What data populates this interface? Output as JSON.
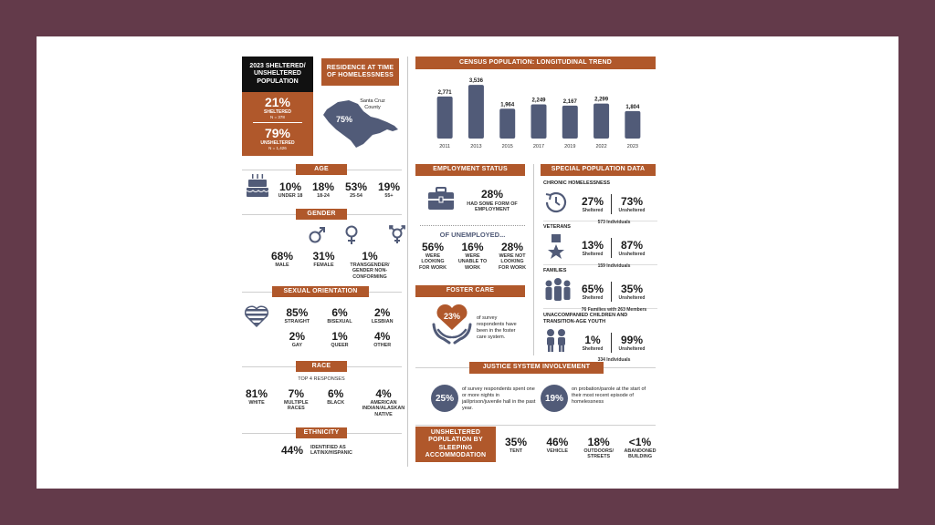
{
  "population": {
    "title": "2023 SHELTERED/ UNSHELTERED POPULATION",
    "sheltered_pct": "21%",
    "sheltered_label": "SHELTERED",
    "sheltered_n": "N = 378",
    "unsheltered_pct": "79%",
    "unsheltered_label": "UNSHELTERED",
    "unsheltered_n": "N = 1,426"
  },
  "residence": {
    "title": "RESIDENCE AT TIME OF HOMELESSNESS",
    "county": "Santa Cruz County",
    "pct": "75%"
  },
  "census": {
    "title": "CENSUS POPULATION: LONGITUDINAL TREND"
  },
  "chart_data": {
    "type": "bar",
    "categories": [
      "2011",
      "2013",
      "2015",
      "2017",
      "2019",
      "2022",
      "2023"
    ],
    "values": [
      2771,
      3536,
      1964,
      2249,
      2167,
      2299,
      1804
    ],
    "value_labels": [
      "2,771",
      "3,536",
      "1,964",
      "2,249",
      "2,167",
      "2,299",
      "1,804"
    ],
    "ylim": [
      0,
      3600
    ],
    "color": "#515b78"
  },
  "age": {
    "title": "AGE",
    "items": [
      {
        "value": "10%",
        "label": "UNDER 18"
      },
      {
        "value": "18%",
        "label": "18-24"
      },
      {
        "value": "53%",
        "label": "25-54"
      },
      {
        "value": "19%",
        "label": "55+"
      }
    ]
  },
  "gender": {
    "title": "GENDER",
    "items": [
      {
        "value": "68%",
        "label": "MALE"
      },
      {
        "value": "31%",
        "label": "FEMALE"
      },
      {
        "value": "1%",
        "label": "TRANSGENDER/ GENDER NON-CONFORMING"
      }
    ]
  },
  "orientation": {
    "title": "SEXUAL ORIENTATION",
    "items": [
      {
        "value": "85%",
        "label": "STRAIGHT"
      },
      {
        "value": "6%",
        "label": "BISEXUAL"
      },
      {
        "value": "2%",
        "label": "LESBIAN"
      },
      {
        "value": "2%",
        "label": "GAY"
      },
      {
        "value": "1%",
        "label": "QUEER"
      },
      {
        "value": "4%",
        "label": "OTHER"
      }
    ]
  },
  "race": {
    "title": "RACE",
    "subtitle": "TOP 4 RESPONSES",
    "items": [
      {
        "value": "81%",
        "label": "WHITE"
      },
      {
        "value": "7%",
        "label": "MULTIPLE RACES"
      },
      {
        "value": "6%",
        "label": "BLACK"
      },
      {
        "value": "4%",
        "label": "AMERICAN INDIAN/ALASKAN NATIVE"
      }
    ]
  },
  "ethnicity": {
    "title": "ETHNICITY",
    "value": "44%",
    "label": "IDENTIFIED AS LATINX/HISPANIC"
  },
  "employment": {
    "title": "EMPLOYMENT STATUS",
    "value": "28%",
    "label": "HAD SOME FORM OF EMPLOYMENT",
    "unemployed_title": "OF UNEMPLOYED...",
    "items": [
      {
        "value": "56%",
        "label": "WERE LOOKING FOR WORK"
      },
      {
        "value": "16%",
        "label": "WERE UNABLE TO WORK"
      },
      {
        "value": "28%",
        "label": "WERE NOT LOOKING FOR WORK"
      }
    ]
  },
  "foster": {
    "title": "FOSTER CARE",
    "value": "23%",
    "label": "of survey respondents have been in the foster care system."
  },
  "special": {
    "title": "SPECIAL POPULATION DATA",
    "sheltered": "Sheltered",
    "unsheltered": "Unsheltered",
    "groups": [
      {
        "title": "CHRONIC HOMELESSNESS",
        "sheltered": "27%",
        "unsheltered": "73%",
        "note": "573 Individuals"
      },
      {
        "title": "VETERANS",
        "sheltered": "13%",
        "unsheltered": "87%",
        "note": "159 Individuals"
      },
      {
        "title": "FAMILIES",
        "sheltered": "65%",
        "unsheltered": "35%",
        "note": "76 Families with 263 Members"
      },
      {
        "title": "UNACCOMPANIED CHILDREN AND TRANSITION-AGE YOUTH",
        "sheltered": "1%",
        "unsheltered": "99%",
        "note": "334 Individuals"
      }
    ]
  },
  "justice": {
    "title": "JUSTICE SYSTEM INVOLVEMENT",
    "items": [
      {
        "value": "25%",
        "label": "of survey respondents spent one or more nights in jail/prison/juvenile hall in the past year."
      },
      {
        "value": "19%",
        "label": "on probation/parole at the start of their most recent episode of homelessness"
      }
    ]
  },
  "sleeping": {
    "title": "UNSHELTERED POPULATION BY SLEEPING ACCOMMODATION",
    "items": [
      {
        "value": "35%",
        "label": "TENT"
      },
      {
        "value": "46%",
        "label": "VEHICLE"
      },
      {
        "value": "18%",
        "label": "OUTDOORS/ STREETS"
      },
      {
        "value": "<1%",
        "label": "ABANDONED BUILDING"
      }
    ]
  },
  "colors": {
    "accent": "#b0582b",
    "navy": "#515b78",
    "frame": "#633a4a"
  }
}
